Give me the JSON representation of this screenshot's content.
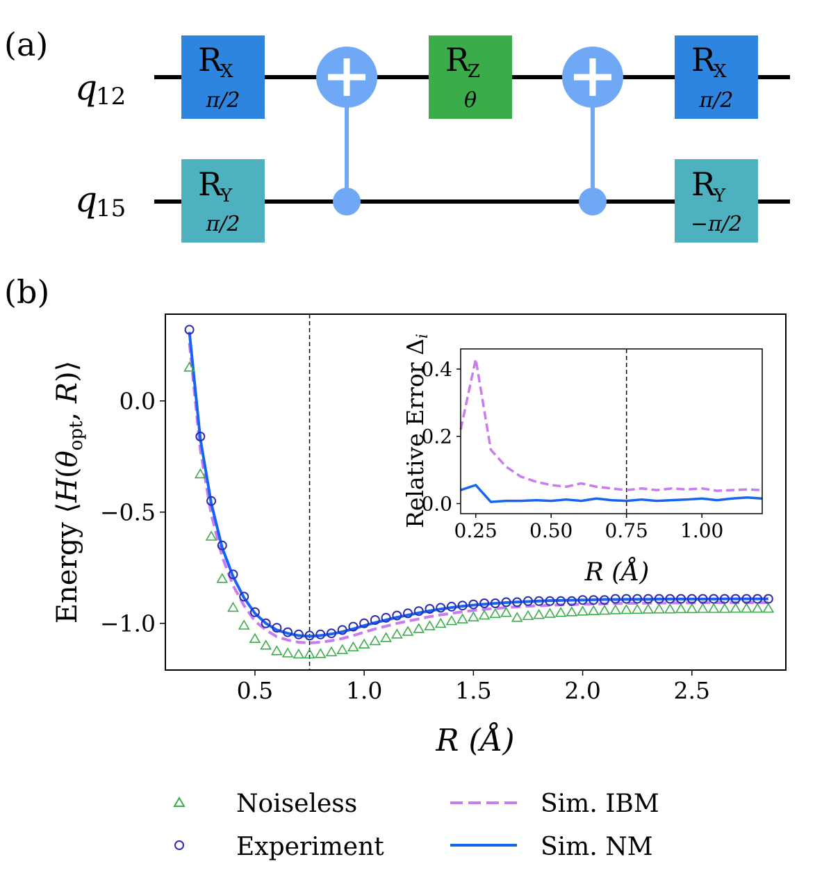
{
  "panels": {
    "a": "(a)",
    "b": "(b)"
  },
  "colors": {
    "rx": "#2d85e0",
    "rz": "#3aad4a",
    "ry": "#4db1bf",
    "cnot": "#6fa8f5",
    "noiseless": "#3aad4a",
    "experiment": "#2b2bb5",
    "ibm": "#c77cf0",
    "nm": "#1565f0"
  },
  "circuit": {
    "qubits": [
      {
        "main": "q",
        "sub": "12"
      },
      {
        "main": "q",
        "sub": "15"
      }
    ],
    "gates": [
      {
        "name": "R",
        "sub": "X",
        "param": "π/2"
      },
      {
        "name": "R",
        "sub": "Y",
        "param": "π/2"
      },
      {
        "name": "R",
        "sub": "Z",
        "param": "θ"
      },
      {
        "name": "R",
        "sub": "X",
        "param": "π/2"
      },
      {
        "name": "R",
        "sub": "Y",
        "param": "−π/2"
      }
    ]
  },
  "chart_data": [
    {
      "type": "line",
      "title": "",
      "xlabel": "R (Å)",
      "ylabel": "Energy ⟨H(θopt, R)⟩",
      "ylabel_parts": {
        "a": "Energy ⟨",
        "b": "H",
        "c": "(",
        "d": "θ",
        "e": "opt",
        "f": ", ",
        "g": "R",
        "h": ")⟩"
      },
      "xlim": [
        0.09,
        2.93
      ],
      "ylim": [
        -1.21,
        0.39
      ],
      "xticks": [
        "0.5",
        "1.0",
        "1.5",
        "2.0",
        "2.5"
      ],
      "xtick_values": [
        0.5,
        1.0,
        1.5,
        2.0,
        2.5
      ],
      "yticks": [
        "0.0",
        "−0.5",
        "−1.0"
      ],
      "ytick_values": [
        0.0,
        -0.5,
        -1.0
      ],
      "vline": 0.75,
      "x": [
        0.2,
        0.25,
        0.3,
        0.35,
        0.4,
        0.45,
        0.5,
        0.55,
        0.6,
        0.65,
        0.7,
        0.75,
        0.8,
        0.85,
        0.9,
        0.95,
        1.0,
        1.05,
        1.1,
        1.15,
        1.2,
        1.25,
        1.3,
        1.35,
        1.4,
        1.45,
        1.5,
        1.55,
        1.6,
        1.65,
        1.7,
        1.75,
        1.8,
        1.85,
        1.9,
        1.95,
        2.0,
        2.05,
        2.1,
        2.15,
        2.2,
        2.25,
        2.3,
        2.35,
        2.4,
        2.45,
        2.5,
        2.55,
        2.6,
        2.65,
        2.7,
        2.75,
        2.8,
        2.85
      ],
      "series": [
        {
          "name": "Noiseless",
          "style": "triangle",
          "values": [
            0.15,
            -0.33,
            -0.61,
            -0.8,
            -0.93,
            -1.01,
            -1.07,
            -1.1,
            -1.125,
            -1.135,
            -1.14,
            -1.14,
            -1.138,
            -1.13,
            -1.12,
            -1.108,
            -1.095,
            -1.08,
            -1.066,
            -1.05,
            -1.038,
            -1.025,
            -1.013,
            -1.002,
            -0.99,
            -0.982,
            -0.973,
            -0.965,
            -0.958,
            -0.953,
            -0.975,
            -0.967,
            -0.962,
            -0.957,
            -0.953,
            -0.95,
            -0.947,
            -0.945,
            -0.943,
            -0.941,
            -0.94,
            -0.939,
            -0.938,
            -0.937,
            -0.937,
            -0.936,
            -0.936,
            -0.935,
            -0.935,
            -0.935,
            -0.934,
            -0.934,
            -0.934,
            -0.934
          ]
        },
        {
          "name": "Experiment",
          "style": "circle",
          "values": [
            0.32,
            -0.16,
            -0.45,
            -0.65,
            -0.78,
            -0.88,
            -0.95,
            -1.0,
            -1.02,
            -1.04,
            -1.05,
            -1.055,
            -1.05,
            -1.045,
            -1.03,
            -1.015,
            -1.0,
            -0.985,
            -0.975,
            -0.965,
            -0.955,
            -0.945,
            -0.935,
            -0.93,
            -0.925,
            -0.92,
            -0.915,
            -0.91,
            -0.91,
            -0.905,
            -0.905,
            -0.9,
            -0.9,
            -0.9,
            -0.9,
            -0.9,
            -0.895,
            -0.895,
            -0.895,
            -0.89,
            -0.89,
            -0.89,
            -0.89,
            -0.89,
            -0.89,
            -0.89,
            -0.89,
            -0.89,
            -0.89,
            -0.89,
            -0.89,
            -0.89,
            -0.89,
            -0.89
          ]
        },
        {
          "name": "Sim. IBM",
          "style": "dashed",
          "values": [
            0.26,
            -0.22,
            -0.51,
            -0.7,
            -0.83,
            -0.92,
            -0.99,
            -1.03,
            -1.06,
            -1.075,
            -1.085,
            -1.088,
            -1.085,
            -1.078,
            -1.068,
            -1.055,
            -1.04,
            -1.025,
            -1.013,
            -1.0,
            -0.99,
            -0.98,
            -0.97,
            -0.962,
            -0.955,
            -0.948,
            -0.942,
            -0.937,
            -0.933,
            -0.929,
            -0.926,
            -0.923,
            -0.921,
            -0.919,
            -0.917,
            -0.916,
            -0.914,
            -0.913,
            -0.912,
            -0.911,
            -0.91,
            -0.91,
            -0.909,
            -0.909,
            -0.908,
            -0.908,
            -0.908,
            -0.907,
            -0.907,
            -0.907,
            -0.907,
            -0.907,
            -0.907,
            -0.907
          ]
        },
        {
          "name": "Sim. NM",
          "style": "solid",
          "values": [
            0.31,
            -0.17,
            -0.46,
            -0.66,
            -0.79,
            -0.885,
            -0.955,
            -1.0,
            -1.03,
            -1.045,
            -1.055,
            -1.058,
            -1.055,
            -1.048,
            -1.038,
            -1.025,
            -1.01,
            -0.997,
            -0.985,
            -0.973,
            -0.963,
            -0.953,
            -0.944,
            -0.936,
            -0.929,
            -0.923,
            -0.918,
            -0.914,
            -0.91,
            -0.907,
            -0.904,
            -0.902,
            -0.9,
            -0.898,
            -0.897,
            -0.896,
            -0.895,
            -0.894,
            -0.893,
            -0.893,
            -0.892,
            -0.892,
            -0.892,
            -0.891,
            -0.891,
            -0.891,
            -0.891,
            -0.891,
            -0.891,
            -0.89,
            -0.89,
            -0.89,
            -0.89,
            -0.89
          ]
        }
      ],
      "legend": [
        "Noiseless",
        "Experiment",
        "Sim. IBM",
        "Sim. NM"
      ],
      "legend_position": "bottom",
      "grid": false
    },
    {
      "type": "line",
      "title": "",
      "xlabel": "R (Å)",
      "ylabel": "Relative Error Δi",
      "ylabel_parts": {
        "a": "Relative Error ",
        "b": "Δ",
        "c": "i"
      },
      "xlim": [
        0.2,
        1.2
      ],
      "ylim": [
        -0.03,
        0.46
      ],
      "xticks": [
        "0.25",
        "0.50",
        "0.75",
        "1.00"
      ],
      "xtick_values": [
        0.25,
        0.5,
        0.75,
        1.0
      ],
      "yticks": [
        "0.0",
        "0.2",
        "0.4"
      ],
      "ytick_values": [
        0.0,
        0.2,
        0.4
      ],
      "vline": 0.75,
      "x": [
        0.2,
        0.25,
        0.3,
        0.35,
        0.4,
        0.45,
        0.5,
        0.55,
        0.6,
        0.65,
        0.7,
        0.75,
        0.8,
        0.85,
        0.9,
        0.95,
        1.0,
        1.05,
        1.1,
        1.15,
        1.2
      ],
      "series": [
        {
          "name": "Sim. IBM",
          "style": "dashed",
          "values": [
            0.22,
            0.43,
            0.16,
            0.11,
            0.08,
            0.065,
            0.055,
            0.05,
            0.06,
            0.05,
            0.045,
            0.04,
            0.045,
            0.04,
            0.045,
            0.042,
            0.045,
            0.038,
            0.04,
            0.042,
            0.04
          ]
        },
        {
          "name": "Sim. NM",
          "style": "solid",
          "values": [
            0.04,
            0.055,
            0.005,
            0.008,
            0.008,
            0.01,
            0.008,
            0.012,
            0.008,
            0.015,
            0.01,
            0.008,
            0.012,
            0.008,
            0.01,
            0.012,
            0.015,
            0.01,
            0.015,
            0.018,
            0.015
          ]
        }
      ],
      "legend": [],
      "grid": false
    }
  ]
}
